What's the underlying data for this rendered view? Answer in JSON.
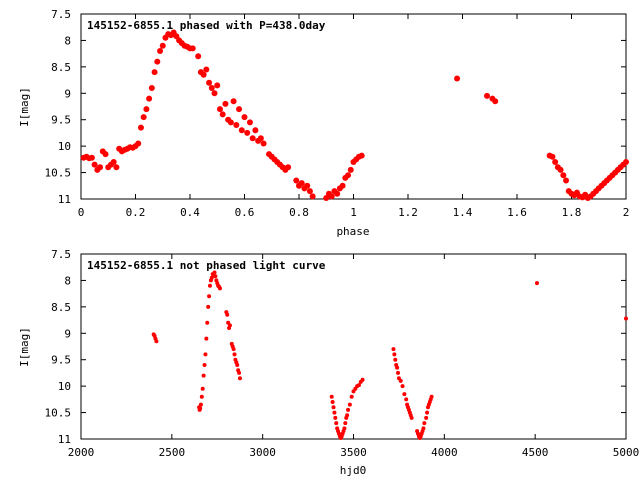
{
  "chart_data": [
    {
      "type": "scatter",
      "title": "145152-6855.1 phased with P=438.0day",
      "xlabel": "phase",
      "ylabel": "I[mag]",
      "xlim": [
        0,
        2
      ],
      "ylim": [
        7.5,
        11
      ],
      "y_inverted": true,
      "grid": false,
      "color": "#ff0000",
      "x_ticks": [
        "0",
        "0.2",
        "0.4",
        "0.6",
        "0.8",
        "1",
        "1.2",
        "1.4",
        "1.6",
        "1.8",
        "2"
      ],
      "y_ticks": [
        "7.5",
        "8",
        "8.5",
        "9",
        "9.5",
        "10",
        "10.5",
        "11"
      ],
      "series": [
        {
          "points": [
            [
              0.01,
              10.22
            ],
            [
              0.02,
              10.2
            ],
            [
              0.03,
              10.23
            ],
            [
              0.04,
              10.22
            ],
            [
              0.05,
              10.35
            ],
            [
              0.06,
              10.45
            ],
            [
              0.07,
              10.4
            ],
            [
              0.08,
              10.1
            ],
            [
              0.09,
              10.15
            ],
            [
              0.1,
              10.4
            ],
            [
              0.11,
              10.35
            ],
            [
              0.12,
              10.3
            ],
            [
              0.13,
              10.4
            ],
            [
              0.14,
              10.05
            ],
            [
              0.15,
              10.1
            ],
            [
              0.16,
              10.07
            ],
            [
              0.17,
              10.05
            ],
            [
              0.18,
              10.02
            ],
            [
              0.19,
              10.03
            ],
            [
              0.2,
              10.0
            ],
            [
              0.21,
              9.95
            ],
            [
              0.22,
              9.65
            ],
            [
              0.23,
              9.45
            ],
            [
              0.24,
              9.3
            ],
            [
              0.25,
              9.1
            ],
            [
              0.26,
              8.9
            ],
            [
              0.27,
              8.6
            ],
            [
              0.28,
              8.4
            ],
            [
              0.29,
              8.2
            ],
            [
              0.3,
              8.1
            ],
            [
              0.31,
              7.95
            ],
            [
              0.32,
              7.88
            ],
            [
              0.33,
              7.9
            ],
            [
              0.34,
              7.85
            ],
            [
              0.35,
              7.92
            ],
            [
              0.36,
              8.0
            ],
            [
              0.37,
              8.05
            ],
            [
              0.38,
              8.1
            ],
            [
              0.39,
              8.12
            ],
            [
              0.4,
              8.15
            ],
            [
              0.41,
              8.15
            ],
            [
              0.43,
              8.3
            ],
            [
              0.44,
              8.6
            ],
            [
              0.45,
              8.65
            ],
            [
              0.46,
              8.55
            ],
            [
              0.47,
              8.8
            ],
            [
              0.48,
              8.9
            ],
            [
              0.49,
              9.0
            ],
            [
              0.5,
              8.85
            ],
            [
              0.51,
              9.3
            ],
            [
              0.52,
              9.4
            ],
            [
              0.53,
              9.2
            ],
            [
              0.54,
              9.5
            ],
            [
              0.55,
              9.55
            ],
            [
              0.56,
              9.15
            ],
            [
              0.57,
              9.6
            ],
            [
              0.58,
              9.3
            ],
            [
              0.59,
              9.7
            ],
            [
              0.6,
              9.45
            ],
            [
              0.61,
              9.75
            ],
            [
              0.62,
              9.55
            ],
            [
              0.63,
              9.85
            ],
            [
              0.64,
              9.7
            ],
            [
              0.65,
              9.9
            ],
            [
              0.66,
              9.85
            ],
            [
              0.67,
              9.95
            ],
            [
              0.69,
              10.15
            ],
            [
              0.7,
              10.2
            ],
            [
              0.71,
              10.25
            ],
            [
              0.72,
              10.3
            ],
            [
              0.73,
              10.35
            ],
            [
              0.74,
              10.4
            ],
            [
              0.75,
              10.45
            ],
            [
              0.76,
              10.4
            ],
            [
              0.79,
              10.65
            ],
            [
              0.8,
              10.75
            ],
            [
              0.81,
              10.7
            ],
            [
              0.82,
              10.8
            ],
            [
              0.83,
              10.75
            ],
            [
              0.84,
              10.85
            ],
            [
              0.85,
              10.95
            ],
            [
              0.9,
              10.98
            ],
            [
              0.91,
              10.9
            ],
            [
              0.92,
              10.95
            ],
            [
              0.93,
              10.85
            ],
            [
              0.94,
              10.9
            ],
            [
              0.95,
              10.8
            ],
            [
              0.96,
              10.75
            ],
            [
              0.97,
              10.6
            ],
            [
              0.98,
              10.55
            ],
            [
              0.99,
              10.45
            ],
            [
              1.0,
              10.3
            ],
            [
              1.01,
              10.25
            ],
            [
              1.02,
              10.2
            ],
            [
              1.03,
              10.18
            ],
            [
              1.38,
              8.72
            ],
            [
              1.49,
              9.05
            ],
            [
              1.51,
              9.1
            ],
            [
              1.52,
              9.15
            ],
            [
              1.72,
              10.18
            ],
            [
              1.73,
              10.2
            ],
            [
              1.74,
              10.3
            ],
            [
              1.75,
              10.4
            ],
            [
              1.76,
              10.45
            ],
            [
              1.77,
              10.55
            ],
            [
              1.78,
              10.65
            ],
            [
              1.79,
              10.85
            ],
            [
              1.8,
              10.9
            ],
            [
              1.81,
              10.93
            ],
            [
              1.82,
              10.88
            ],
            [
              1.83,
              10.95
            ],
            [
              1.84,
              10.97
            ],
            [
              1.85,
              10.92
            ],
            [
              1.86,
              10.98
            ],
            [
              1.87,
              10.95
            ],
            [
              1.88,
              10.9
            ],
            [
              1.89,
              10.85
            ],
            [
              1.9,
              10.8
            ],
            [
              1.91,
              10.75
            ],
            [
              1.92,
              10.7
            ],
            [
              1.93,
              10.65
            ],
            [
              1.94,
              10.6
            ],
            [
              1.95,
              10.55
            ],
            [
              1.96,
              10.5
            ],
            [
              1.97,
              10.45
            ],
            [
              1.98,
              10.4
            ],
            [
              1.99,
              10.35
            ],
            [
              2.0,
              10.3
            ]
          ]
        }
      ]
    },
    {
      "type": "scatter",
      "title": "145152-6855.1 not phased light curve",
      "xlabel": "hjd0",
      "ylabel": "I[mag]",
      "xlim": [
        2000,
        5000
      ],
      "ylim": [
        7.5,
        11
      ],
      "y_inverted": true,
      "grid": false,
      "color": "#ff0000",
      "x_ticks": [
        "2000",
        "2500",
        "3000",
        "3500",
        "4000",
        "4500",
        "5000"
      ],
      "y_ticks": [
        "7.5",
        "8",
        "8.5",
        "9",
        "9.5",
        "10",
        "10.5",
        "11"
      ],
      "series": [
        {
          "points": [
            [
              2400,
              9.02
            ],
            [
              2405,
              9.05
            ],
            [
              2410,
              9.1
            ],
            [
              2415,
              9.15
            ],
            [
              2650,
              10.4
            ],
            [
              2653,
              10.45
            ],
            [
              2656,
              10.42
            ],
            [
              2660,
              10.35
            ],
            [
              2665,
              10.2
            ],
            [
              2670,
              10.05
            ],
            [
              2675,
              9.8
            ],
            [
              2680,
              9.6
            ],
            [
              2685,
              9.4
            ],
            [
              2690,
              9.1
            ],
            [
              2695,
              8.8
            ],
            [
              2700,
              8.5
            ],
            [
              2705,
              8.3
            ],
            [
              2710,
              8.1
            ],
            [
              2715,
              8.0
            ],
            [
              2720,
              7.95
            ],
            [
              2725,
              7.88
            ],
            [
              2730,
              7.9
            ],
            [
              2735,
              7.85
            ],
            [
              2740,
              7.92
            ],
            [
              2745,
              8.0
            ],
            [
              2750,
              8.05
            ],
            [
              2755,
              8.1
            ],
            [
              2760,
              8.12
            ],
            [
              2765,
              8.15
            ],
            [
              2800,
              8.6
            ],
            [
              2805,
              8.65
            ],
            [
              2810,
              8.8
            ],
            [
              2815,
              8.9
            ],
            [
              2820,
              8.85
            ],
            [
              2830,
              9.2
            ],
            [
              2835,
              9.25
            ],
            [
              2840,
              9.3
            ],
            [
              2845,
              9.4
            ],
            [
              2850,
              9.5
            ],
            [
              2855,
              9.55
            ],
            [
              2860,
              9.6
            ],
            [
              2865,
              9.7
            ],
            [
              2870,
              9.75
            ],
            [
              2875,
              9.85
            ],
            [
              3380,
              10.2
            ],
            [
              3385,
              10.3
            ],
            [
              3390,
              10.4
            ],
            [
              3395,
              10.5
            ],
            [
              3400,
              10.6
            ],
            [
              3405,
              10.7
            ],
            [
              3410,
              10.8
            ],
            [
              3415,
              10.85
            ],
            [
              3420,
              10.9
            ],
            [
              3425,
              10.95
            ],
            [
              3430,
              10.98
            ],
            [
              3435,
              10.95
            ],
            [
              3440,
              10.9
            ],
            [
              3445,
              10.85
            ],
            [
              3450,
              10.8
            ],
            [
              3455,
              10.7
            ],
            [
              3460,
              10.6
            ],
            [
              3465,
              10.55
            ],
            [
              3470,
              10.45
            ],
            [
              3480,
              10.35
            ],
            [
              3490,
              10.2
            ],
            [
              3500,
              10.1
            ],
            [
              3510,
              10.05
            ],
            [
              3520,
              10.0
            ],
            [
              3530,
              9.98
            ],
            [
              3540,
              9.92
            ],
            [
              3550,
              9.88
            ],
            [
              3720,
              9.3
            ],
            [
              3725,
              9.4
            ],
            [
              3730,
              9.5
            ],
            [
              3735,
              9.6
            ],
            [
              3740,
              9.65
            ],
            [
              3745,
              9.75
            ],
            [
              3750,
              9.85
            ],
            [
              3760,
              9.9
            ],
            [
              3770,
              10.0
            ],
            [
              3780,
              10.15
            ],
            [
              3790,
              10.25
            ],
            [
              3795,
              10.35
            ],
            [
              3800,
              10.4
            ],
            [
              3805,
              10.45
            ],
            [
              3810,
              10.5
            ],
            [
              3815,
              10.55
            ],
            [
              3820,
              10.6
            ],
            [
              3850,
              10.85
            ],
            [
              3855,
              10.9
            ],
            [
              3860,
              10.95
            ],
            [
              3865,
              10.98
            ],
            [
              3870,
              10.95
            ],
            [
              3875,
              10.9
            ],
            [
              3880,
              10.85
            ],
            [
              3885,
              10.8
            ],
            [
              3890,
              10.7
            ],
            [
              3900,
              10.6
            ],
            [
              3905,
              10.5
            ],
            [
              3910,
              10.4
            ],
            [
              3915,
              10.35
            ],
            [
              3920,
              10.3
            ],
            [
              3925,
              10.25
            ],
            [
              3930,
              10.2
            ],
            [
              4510,
              8.05
            ],
            [
              5000,
              8.72
            ]
          ]
        }
      ]
    }
  ]
}
